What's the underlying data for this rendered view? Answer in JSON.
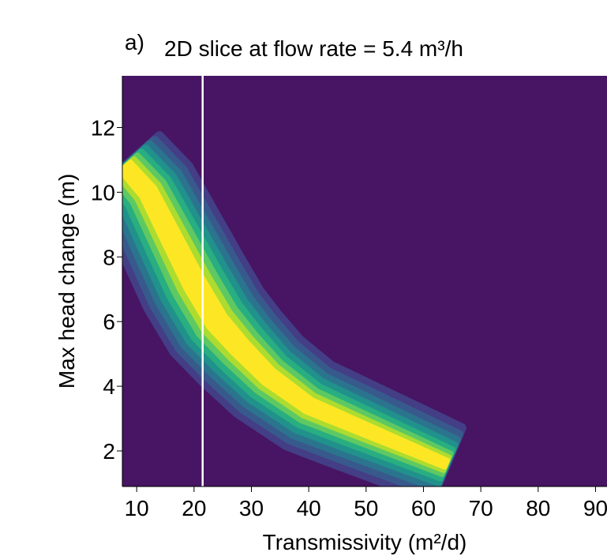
{
  "chart_data": {
    "type": "heatmap",
    "panel_label": "a)",
    "title": "2D slice at flow rate = 5.4 m³/h",
    "xlabel": "Transmissivity (m²/d)",
    "ylabel": "Max head change (m)",
    "xlim": [
      7.5,
      92
    ],
    "ylim": [
      0.9,
      13.6
    ],
    "xticks": [
      10,
      20,
      30,
      40,
      50,
      60,
      70,
      80,
      90
    ],
    "yticks": [
      2,
      4,
      6,
      8,
      10,
      12
    ],
    "xtick_labels": [
      "10",
      "20",
      "30",
      "40",
      "50",
      "60",
      "70",
      "80",
      "90"
    ],
    "ytick_labels": [
      "2",
      "4",
      "6",
      "8",
      "10",
      "12"
    ],
    "grid": false,
    "colormap": "viridis",
    "background_color": "#471563",
    "vertical_line": {
      "x": 21.5,
      "color": "#ffffff"
    },
    "density_ridge": [
      {
        "x": 8,
        "y": 10.8
      },
      {
        "x": 12,
        "y": 10.0
      },
      {
        "x": 16,
        "y": 8.6
      },
      {
        "x": 20,
        "y": 7.2
      },
      {
        "x": 24,
        "y": 6.0
      },
      {
        "x": 28,
        "y": 5.2
      },
      {
        "x": 33,
        "y": 4.3
      },
      {
        "x": 40,
        "y": 3.4
      },
      {
        "x": 48,
        "y": 2.8
      },
      {
        "x": 56,
        "y": 2.2
      },
      {
        "x": 64,
        "y": 1.6
      }
    ],
    "peak": {
      "x": 25,
      "y": 5.9
    },
    "contour_levels": [
      {
        "level": 1,
        "color": "#433e85"
      },
      {
        "level": 2,
        "color": "#38598c"
      },
      {
        "level": 3,
        "color": "#2b748e"
      },
      {
        "level": 4,
        "color": "#21918c"
      },
      {
        "level": 5,
        "color": "#28ae80"
      },
      {
        "level": 6,
        "color": "#5ec962"
      },
      {
        "level": 7,
        "color": "#addc30"
      },
      {
        "level": 8,
        "color": "#fde725"
      }
    ]
  }
}
